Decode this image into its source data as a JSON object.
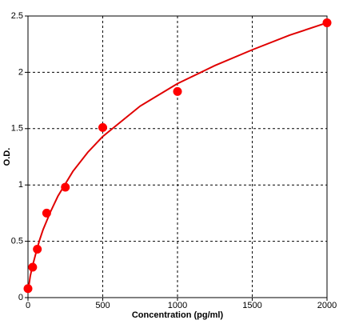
{
  "chart_data": {
    "type": "scatter",
    "x_label": "Concentration (pg/ml)",
    "y_label": "O.D.",
    "xlim": [
      0,
      2000
    ],
    "xticks": [
      0,
      500,
      1000,
      1500,
      2000
    ],
    "ylim": [
      0,
      2.5
    ],
    "yticks": [
      0,
      0.5,
      1,
      1.5,
      2,
      2.5
    ],
    "grid": true,
    "series": [
      {
        "color": "#ff0000",
        "x": [
          0,
          31.25,
          62.5,
          125,
          250,
          500,
          1000,
          2000
        ],
        "values": [
          0.08,
          0.27,
          0.43,
          0.75,
          0.98,
          1.51,
          1.83,
          2.44
        ]
      }
    ],
    "curve": {
      "color": "#e00000",
      "x": [
        0,
        15,
        30,
        50,
        75,
        100,
        150,
        200,
        300,
        400,
        500,
        750,
        1000,
        1250,
        1500,
        1750,
        2000
      ],
      "values": [
        0.05,
        0.19,
        0.28,
        0.38,
        0.5,
        0.6,
        0.76,
        0.9,
        1.12,
        1.29,
        1.43,
        1.7,
        1.9,
        2.06,
        2.2,
        2.33,
        2.44
      ]
    }
  }
}
